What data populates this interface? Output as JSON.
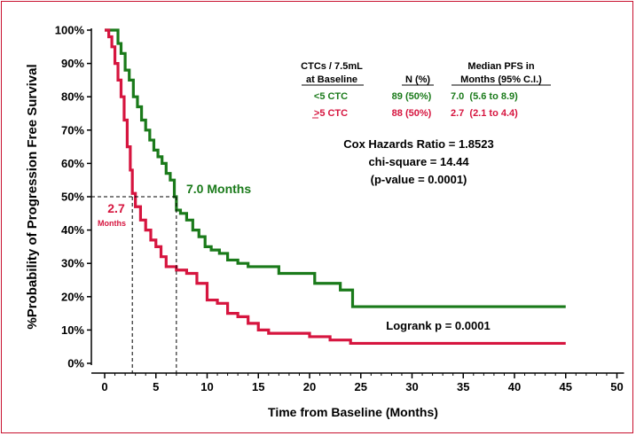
{
  "colors": {
    "green": "#1a7a1a",
    "red": "#d6153f",
    "border": "#c8102e",
    "text": "#000000"
  },
  "chart_data": {
    "type": "line",
    "step": true,
    "xlabel": "Time from Baseline (Months)",
    "ylabel": "%Probability of Progression Free Survival",
    "xlim": [
      0,
      50
    ],
    "ylim": [
      0,
      100
    ],
    "xticks": [
      "0",
      "5",
      "10",
      "15",
      "20",
      "25",
      "30",
      "35",
      "40",
      "45",
      "50"
    ],
    "yticks": [
      "0%",
      "10%",
      "20%",
      "30%",
      "40%",
      "50%",
      "60%",
      "70%",
      "80%",
      "90%",
      "100%"
    ],
    "series": [
      {
        "name": "<5 CTC",
        "color": "#1a7a1a",
        "x": [
          0,
          1,
          1.3,
          1.6,
          2.0,
          2.4,
          2.8,
          3.2,
          3.6,
          4.0,
          4.4,
          4.8,
          5.2,
          5.6,
          6.0,
          6.4,
          6.8,
          7.0,
          7.4,
          8.0,
          8.6,
          9.2,
          9.8,
          10.4,
          11.2,
          12.0,
          13.0,
          14.0,
          15.0,
          17.0,
          20.5,
          23.0,
          24.2,
          45
        ],
        "y": [
          100,
          100,
          96,
          93,
          88,
          85,
          80,
          77,
          73,
          70,
          67,
          64,
          62,
          60,
          57,
          55,
          50,
          46,
          45,
          43,
          40,
          38,
          35,
          34,
          33,
          31,
          30,
          29,
          29,
          27,
          24,
          22,
          17,
          17
        ]
      },
      {
        "name": ">5 CTC",
        "color": "#d6153f",
        "x": [
          0,
          0.4,
          0.7,
          1.0,
          1.3,
          1.6,
          1.9,
          2.2,
          2.5,
          2.7,
          3.0,
          3.5,
          4.0,
          4.5,
          5.0,
          5.5,
          6.0,
          7.0,
          8.0,
          9.0,
          10.0,
          11.0,
          12.0,
          13.0,
          14.0,
          15.0,
          16.0,
          18.0,
          20.0,
          22.0,
          24.0,
          45
        ],
        "y": [
          100,
          98,
          95,
          90,
          85,
          80,
          73,
          65,
          58,
          51,
          47,
          43,
          40,
          37,
          35,
          32,
          29,
          28,
          27,
          24,
          19,
          18,
          15,
          14,
          12,
          10,
          9,
          9,
          8,
          7,
          6,
          6
        ]
      }
    ],
    "reference_lines": [
      {
        "median": 2.7,
        "level": 50,
        "label": "2.7",
        "sublabel": "Months",
        "color": "#d6153f"
      },
      {
        "median": 7.0,
        "level": 50,
        "label": "7.0 Months",
        "color": "#1a7a1a"
      }
    ],
    "legend_table": {
      "header": {
        "col1a": "CTCs / 7.5mL",
        "col1b": "at Baseline",
        "col2": "N (%)",
        "col3a": "Median PFS in",
        "col3b": "Months (95% C.I.)"
      },
      "rows": [
        {
          "group": "<5 CTC",
          "n": "89 (50%)",
          "pfs": "7.0  (5.6 to 8.9)",
          "color": "#1a7a1a"
        },
        {
          "group": ">5 CTC",
          "n": "88 (50%)",
          "pfs": "2.7  (2.1 to 4.4)",
          "color": "#d6153f"
        }
      ]
    },
    "annotations": {
      "cox": "Cox Hazards Ratio = 1.8523",
      "chi": "chi-square = 14.44",
      "pvalue": "(p-value = 0.0001)",
      "logrank": "Logrank p = 0.0001"
    }
  }
}
